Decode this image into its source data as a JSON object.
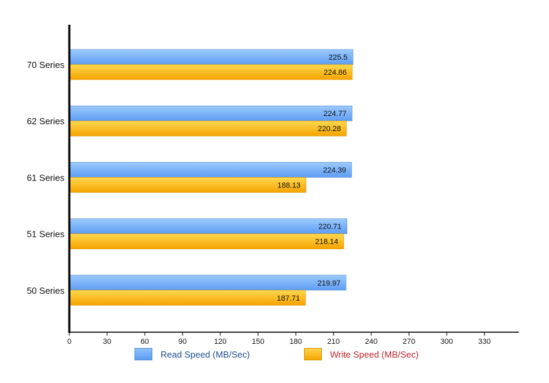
{
  "chart_data": {
    "type": "bar",
    "orientation": "horizontal",
    "categories": [
      "70 Series",
      "62 Series",
      "61 Series",
      "51 Series",
      "50 Series"
    ],
    "series": [
      {
        "name": "Read Speed (MB/Sec)",
        "values": [
          225.5,
          224.77,
          224.39,
          220.71,
          219.97
        ],
        "color": "#6aa6f5"
      },
      {
        "name": "Write Speed (MB/Sec)",
        "values": [
          224.86,
          220.28,
          188.13,
          218.14,
          187.71
        ],
        "color": "#fbb60f"
      }
    ],
    "xlim": [
      0,
      360
    ],
    "xticks": [
      0,
      30,
      60,
      90,
      120,
      150,
      180,
      210,
      240,
      270,
      300,
      330
    ],
    "legend_placement": "bottom",
    "grid": false
  },
  "colors": {
    "read_label": "#1f4f8f",
    "write_label": "#c0262d"
  }
}
